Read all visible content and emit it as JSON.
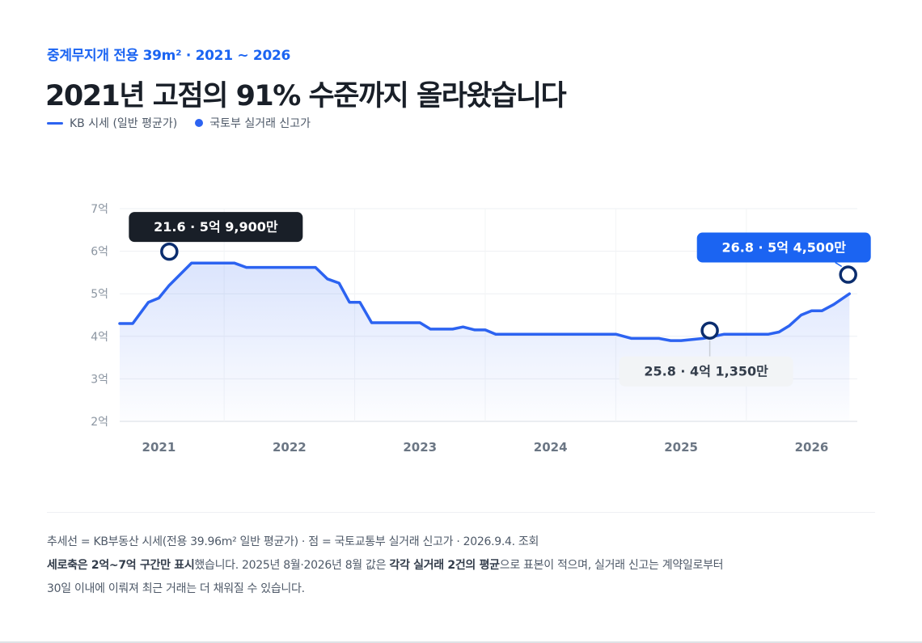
{
  "header": {
    "subtitle": "중계무지개 전용 39m² · 2021 ~ 2026",
    "title": "2021년 고점의 91% 수준까지 올라왔습니다"
  },
  "legend": {
    "line_label": "KB 시세 (일반 평균가)",
    "dot_label": "국토부 실거래 신고가"
  },
  "colors": {
    "line": "#2c63f1",
    "dark_tooltip": "#191f28",
    "blue_tooltip": "#1b64f2",
    "light_tooltip": "#f2f4f6"
  },
  "chart_data": {
    "type": "line",
    "x_ticks": [
      "2021",
      "2022",
      "2023",
      "2024",
      "2025",
      "2026"
    ],
    "y_ticks": [
      "2억",
      "3억",
      "4억",
      "5억",
      "6억",
      "7억"
    ],
    "ylim": [
      2,
      7
    ],
    "xlim": [
      2020.7,
      2026.35
    ],
    "series": [
      {
        "name": "KB 시세 (일반 평균가)",
        "points": [
          [
            2020.7,
            4.3
          ],
          [
            2020.8,
            4.3
          ],
          [
            2020.92,
            4.8
          ],
          [
            2021.0,
            4.9
          ],
          [
            2021.08,
            5.2
          ],
          [
            2021.25,
            5.72
          ],
          [
            2021.5,
            5.72
          ],
          [
            2021.58,
            5.72
          ],
          [
            2021.67,
            5.62
          ],
          [
            2021.83,
            5.62
          ],
          [
            2022.0,
            5.62
          ],
          [
            2022.2,
            5.62
          ],
          [
            2022.29,
            5.35
          ],
          [
            2022.38,
            5.25
          ],
          [
            2022.46,
            4.8
          ],
          [
            2022.54,
            4.8
          ],
          [
            2022.63,
            4.32
          ],
          [
            2022.83,
            4.32
          ],
          [
            2023.0,
            4.32
          ],
          [
            2023.08,
            4.17
          ],
          [
            2023.25,
            4.17
          ],
          [
            2023.33,
            4.22
          ],
          [
            2023.42,
            4.15
          ],
          [
            2023.5,
            4.15
          ],
          [
            2023.58,
            4.05
          ],
          [
            2024.0,
            4.05
          ],
          [
            2024.25,
            4.05
          ],
          [
            2024.5,
            4.05
          ],
          [
            2024.62,
            3.95
          ],
          [
            2024.83,
            3.95
          ],
          [
            2024.92,
            3.9
          ],
          [
            2025.0,
            3.9
          ],
          [
            2025.17,
            3.95
          ],
          [
            2025.33,
            4.05
          ],
          [
            2025.5,
            4.05
          ],
          [
            2025.67,
            4.05
          ],
          [
            2025.75,
            4.1
          ],
          [
            2025.83,
            4.25
          ],
          [
            2025.92,
            4.5
          ],
          [
            2026.0,
            4.6
          ],
          [
            2026.08,
            4.6
          ],
          [
            2026.17,
            4.75
          ],
          [
            2026.29,
            5.0
          ]
        ]
      }
    ],
    "annotations": [
      {
        "x": 2021.08,
        "y": 5.99,
        "label": "21.6 · 5억 9,900만",
        "style": "dark"
      },
      {
        "x": 2025.22,
        "y": 4.135,
        "label": "25.8 · 4억 1,350만",
        "style": "light"
      },
      {
        "x": 2026.28,
        "y": 5.45,
        "label": "26.8 · 5억 4,500만",
        "style": "blue"
      }
    ]
  },
  "footnote": {
    "line1": "추세선 = KB부동산 시세(전용 39.96m² 일반 평균가) · 점 = 국토교통부 실거래 신고가 · 2026.9.4. 조회",
    "line2_bold1": "세로축은 2억~7억 구간만 표시",
    "line2_text1": "했습니다. 2025년 8월·2026년 8월 값은 ",
    "line2_bold2": "각각 실거래 2건의 평균",
    "line2_text2": "으로 표본이 적으며, 실거래 신고는 계약일로부터",
    "line3": "30일 이내에 이뤄져 최근 거래는 더 채워질 수 있습니다."
  }
}
